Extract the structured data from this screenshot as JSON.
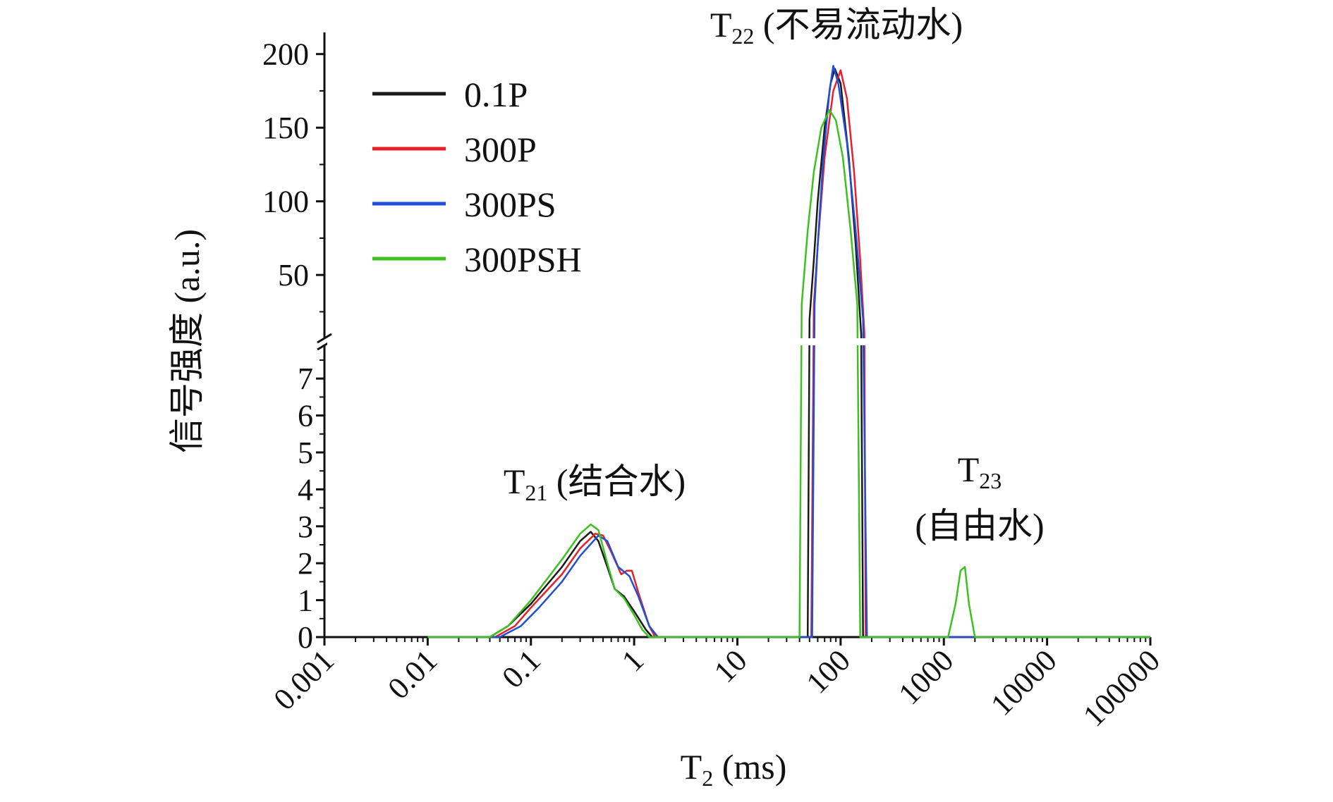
{
  "chart_data": {
    "type": "line",
    "xlabel": "T",
    "xlabel_sub": "2",
    "xlabel_unit": " (ms)",
    "ylabel": "信号强度 (a.u.)",
    "x_scale": "log",
    "xlim": [
      0.001,
      100000
    ],
    "x_ticks": [
      "0.001",
      "0.01",
      "0.1",
      "1",
      "10",
      "100",
      "1000",
      "10000",
      "100000"
    ],
    "y_axis_broken": true,
    "ylim_lower": [
      0,
      7.9
    ],
    "ylim_upper": [
      7,
      208
    ],
    "y_ticks_lower": [
      "0",
      "1",
      "2",
      "3",
      "4",
      "5",
      "6",
      "7"
    ],
    "y_ticks_upper": [
      "50",
      "100",
      "150",
      "200"
    ],
    "grid": false,
    "legend_position": "top-left",
    "annotations": [
      {
        "main": "T",
        "sub": "21",
        "text": " (结合水)"
      },
      {
        "main": "T",
        "sub": "22",
        "text": " (不易流动水)"
      },
      {
        "main": "T",
        "sub": "23",
        "text": "(自由水)"
      }
    ],
    "series": [
      {
        "name": "0.1P",
        "color": "#1a1a1a",
        "points": [
          [
            0.01,
            0
          ],
          [
            0.04,
            0
          ],
          [
            0.06,
            0.3
          ],
          [
            0.1,
            0.9
          ],
          [
            0.2,
            1.9
          ],
          [
            0.3,
            2.6
          ],
          [
            0.38,
            2.85
          ],
          [
            0.45,
            2.6
          ],
          [
            0.55,
            1.9
          ],
          [
            0.65,
            1.3
          ],
          [
            0.8,
            1.1
          ],
          [
            1.0,
            0.7
          ],
          [
            1.3,
            0.2
          ],
          [
            1.5,
            0
          ],
          [
            45,
            0
          ],
          [
            48,
            0
          ],
          [
            50,
            20
          ],
          [
            55,
            60
          ],
          [
            60,
            100
          ],
          [
            70,
            150
          ],
          [
            80,
            180
          ],
          [
            88,
            190
          ],
          [
            100,
            180
          ],
          [
            120,
            130
          ],
          [
            140,
            70
          ],
          [
            158,
            10
          ],
          [
            165,
            0
          ],
          [
            100000,
            0
          ]
        ]
      },
      {
        "name": "300P",
        "color": "#e8202a",
        "points": [
          [
            0.01,
            0
          ],
          [
            0.045,
            0
          ],
          [
            0.07,
            0.3
          ],
          [
            0.1,
            0.8
          ],
          [
            0.2,
            1.7
          ],
          [
            0.3,
            2.4
          ],
          [
            0.42,
            2.8
          ],
          [
            0.5,
            2.75
          ],
          [
            0.6,
            2.3
          ],
          [
            0.75,
            1.7
          ],
          [
            0.85,
            1.8
          ],
          [
            0.95,
            1.8
          ],
          [
            1.1,
            1.2
          ],
          [
            1.4,
            0.3
          ],
          [
            1.6,
            0
          ],
          [
            50,
            0
          ],
          [
            52,
            0
          ],
          [
            55,
            30
          ],
          [
            60,
            70
          ],
          [
            70,
            130
          ],
          [
            85,
            175
          ],
          [
            100,
            189
          ],
          [
            115,
            170
          ],
          [
            135,
            120
          ],
          [
            155,
            60
          ],
          [
            170,
            10
          ],
          [
            175,
            0
          ],
          [
            100000,
            0
          ]
        ]
      },
      {
        "name": "300PS",
        "color": "#1f4fd8",
        "points": [
          [
            0.01,
            0
          ],
          [
            0.05,
            0
          ],
          [
            0.08,
            0.3
          ],
          [
            0.12,
            0.8
          ],
          [
            0.2,
            1.5
          ],
          [
            0.3,
            2.2
          ],
          [
            0.45,
            2.75
          ],
          [
            0.55,
            2.6
          ],
          [
            0.7,
            1.9
          ],
          [
            0.9,
            1.65
          ],
          [
            1.1,
            1.1
          ],
          [
            1.4,
            0.3
          ],
          [
            1.7,
            0
          ],
          [
            50,
            0
          ],
          [
            53,
            0
          ],
          [
            56,
            30
          ],
          [
            60,
            70
          ],
          [
            68,
            130
          ],
          [
            78,
            175
          ],
          [
            85,
            192
          ],
          [
            95,
            180
          ],
          [
            115,
            140
          ],
          [
            140,
            80
          ],
          [
            165,
            20
          ],
          [
            180,
            0
          ],
          [
            100000,
            0
          ]
        ]
      },
      {
        "name": "300PSH",
        "color": "#3cc21f",
        "points": [
          [
            0.01,
            0
          ],
          [
            0.04,
            0
          ],
          [
            0.06,
            0.3
          ],
          [
            0.1,
            1.0
          ],
          [
            0.2,
            2.1
          ],
          [
            0.3,
            2.8
          ],
          [
            0.38,
            3.05
          ],
          [
            0.45,
            2.9
          ],
          [
            0.55,
            2.0
          ],
          [
            0.65,
            1.3
          ],
          [
            0.8,
            1.05
          ],
          [
            1.0,
            0.6
          ],
          [
            1.2,
            0.2
          ],
          [
            1.4,
            0
          ],
          [
            38,
            0
          ],
          [
            40,
            0
          ],
          [
            42,
            30
          ],
          [
            48,
            80
          ],
          [
            55,
            120
          ],
          [
            65,
            150
          ],
          [
            78,
            162
          ],
          [
            90,
            155
          ],
          [
            105,
            130
          ],
          [
            125,
            80
          ],
          [
            145,
            30
          ],
          [
            155,
            0
          ],
          [
            1100,
            0
          ],
          [
            1300,
            0.9
          ],
          [
            1450,
            1.8
          ],
          [
            1600,
            1.9
          ],
          [
            1750,
            0.9
          ],
          [
            2000,
            0
          ],
          [
            100000,
            0
          ]
        ]
      }
    ]
  }
}
